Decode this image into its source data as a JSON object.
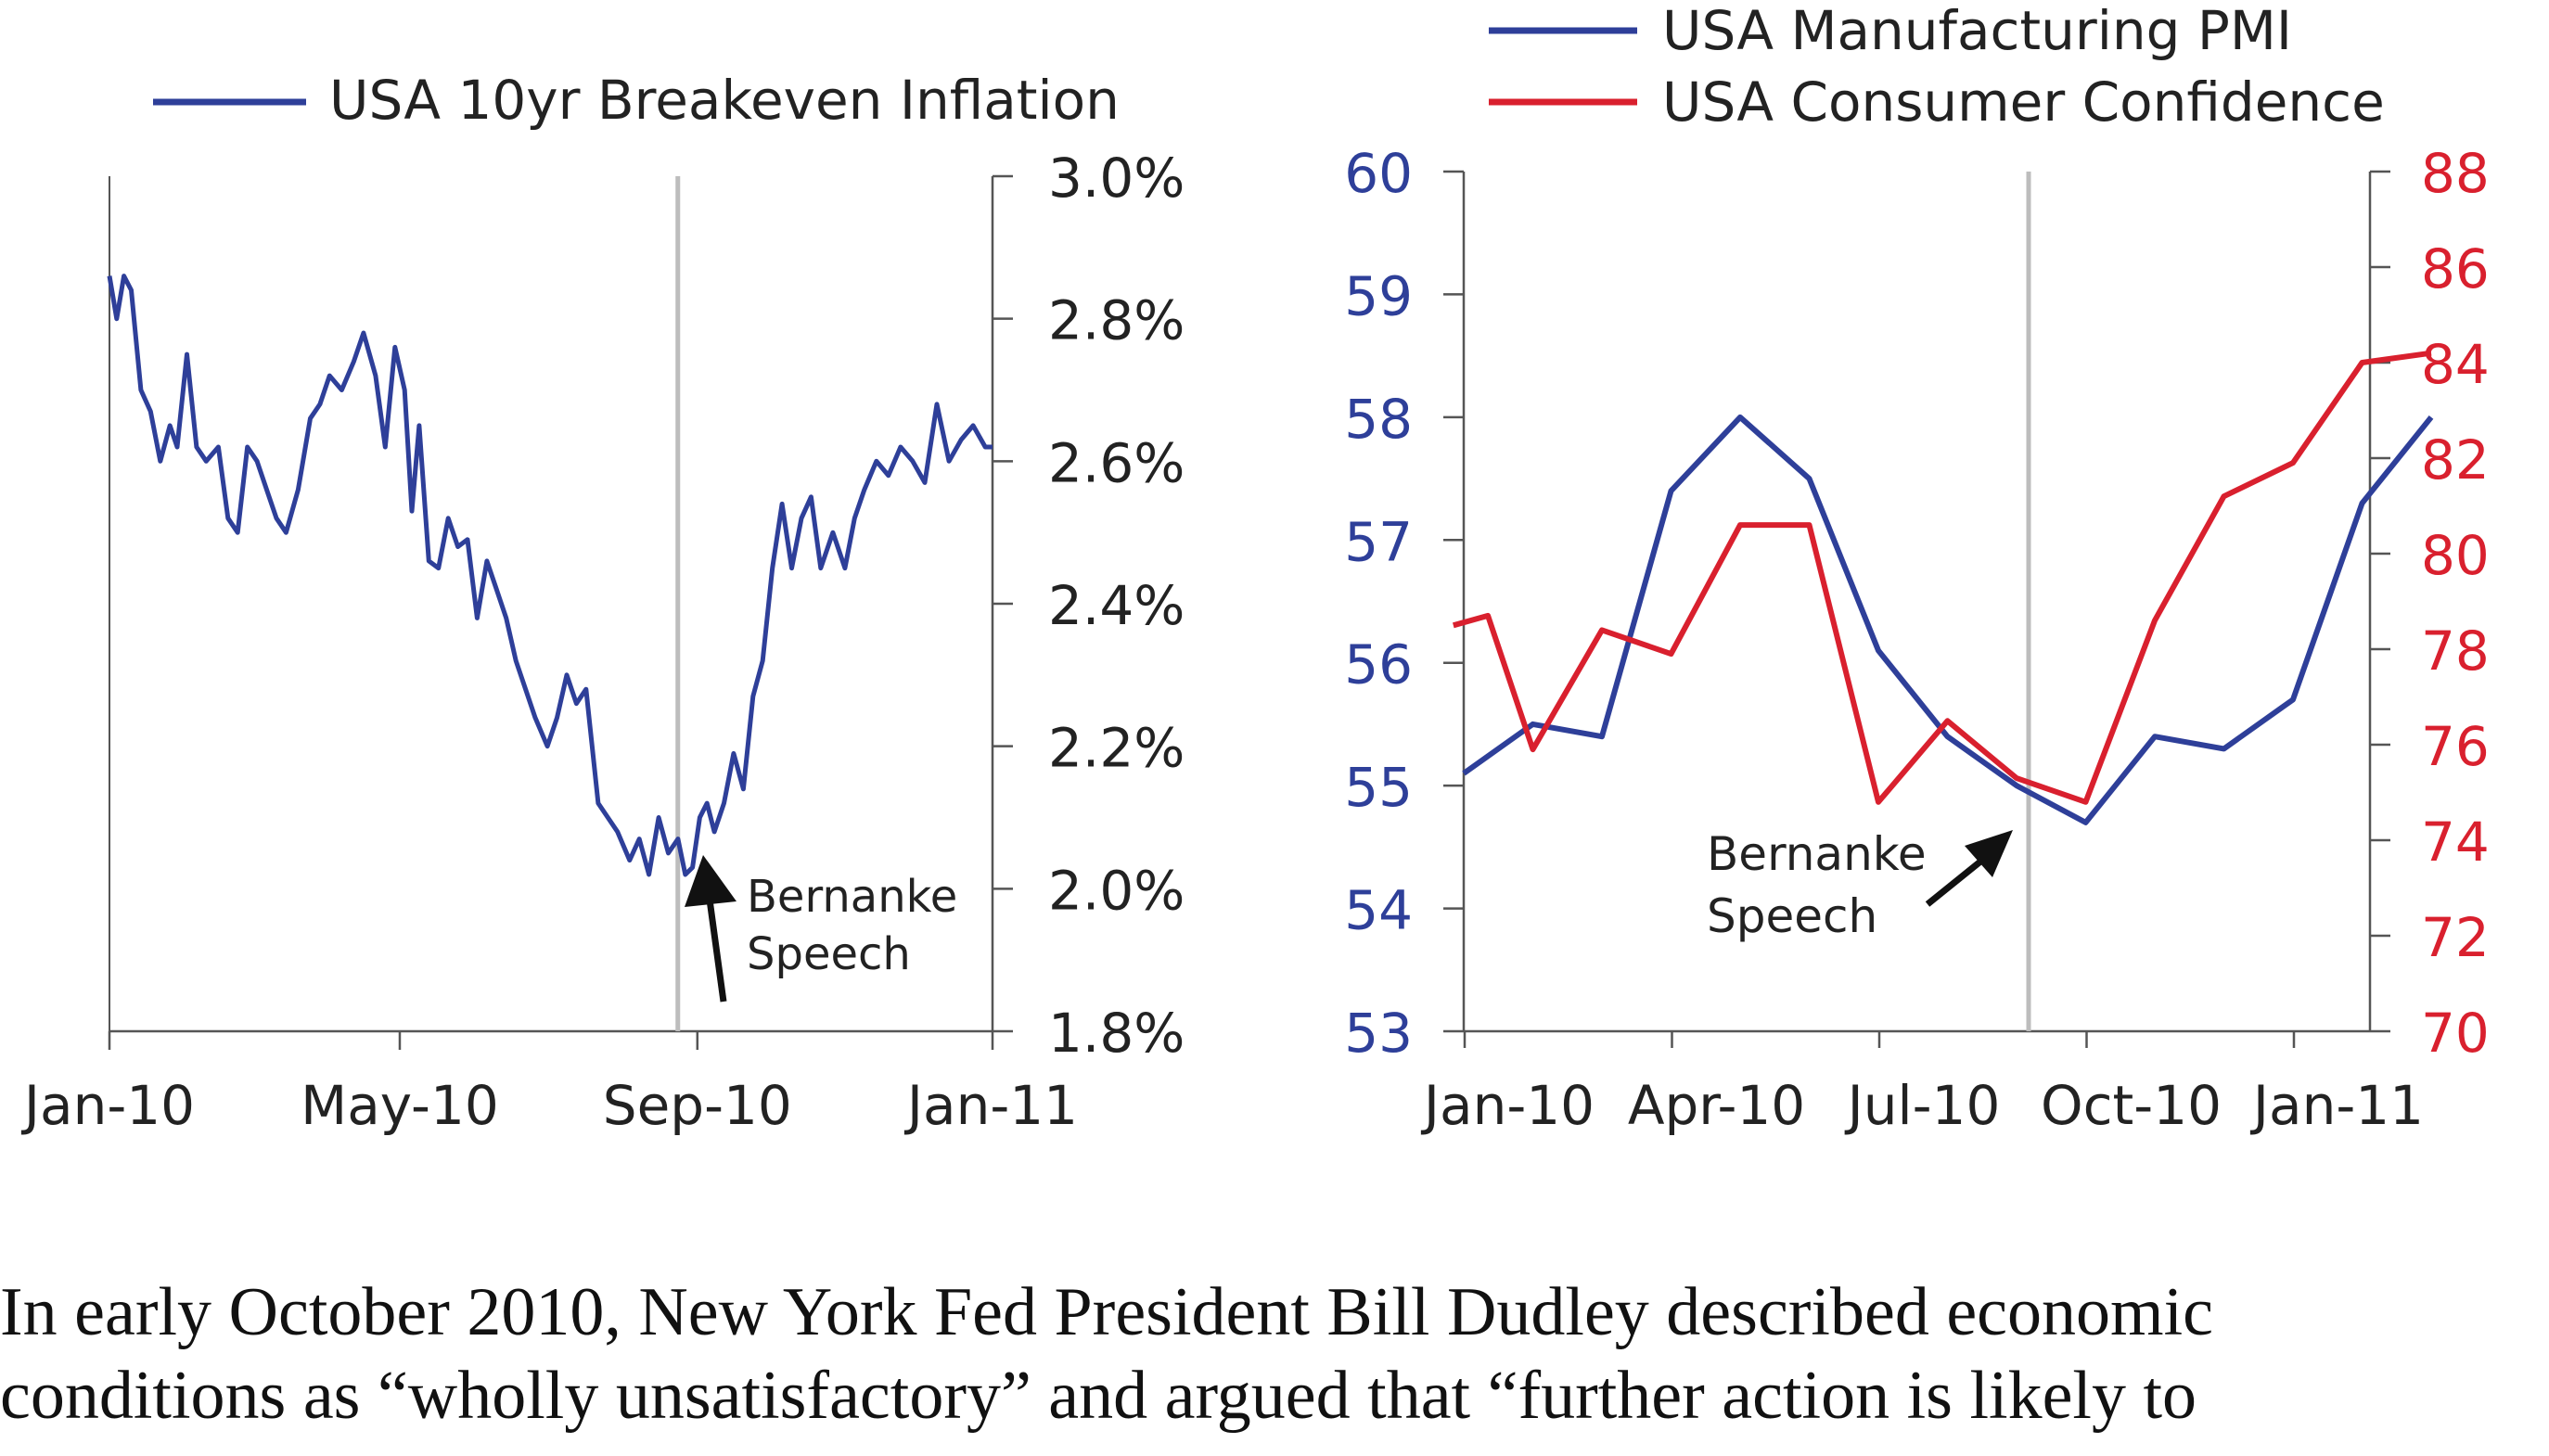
{
  "colors": {
    "blue": "#2E3F99",
    "red": "#D9202E",
    "axis": "#555555",
    "text": "#222222",
    "marker": "#BDBDBD",
    "arrow": "#111111"
  },
  "chart_data": [
    {
      "type": "line",
      "legend": [
        "USA 10yr Breakeven Inflation"
      ],
      "legend_placement": "top",
      "x_ticks": [
        "Jan-10",
        "May-10",
        "Sep-10",
        "Jan-11"
      ],
      "y_ticks": [
        "1.8%",
        "2.0%",
        "2.2%",
        "2.4%",
        "2.6%",
        "2.8%",
        "3.0%"
      ],
      "ylim": [
        1.8,
        3.0
      ],
      "y_axis_side": "right",
      "grid": false,
      "series": [
        {
          "name": "USA 10yr Breakeven Inflation",
          "color": "#2E3F99",
          "x": [
            "2010-01-01",
            "2010-01-04",
            "2010-01-07",
            "2010-01-10",
            "2010-01-14",
            "2010-01-18",
            "2010-01-22",
            "2010-01-26",
            "2010-01-29",
            "2010-02-02",
            "2010-02-06",
            "2010-02-10",
            "2010-02-15",
            "2010-02-19",
            "2010-02-23",
            "2010-02-27",
            "2010-03-03",
            "2010-03-07",
            "2010-03-11",
            "2010-03-15",
            "2010-03-20",
            "2010-03-25",
            "2010-03-29",
            "2010-04-02",
            "2010-04-07",
            "2010-04-12",
            "2010-04-16",
            "2010-04-21",
            "2010-04-25",
            "2010-04-29",
            "2010-05-03",
            "2010-05-06",
            "2010-05-09",
            "2010-05-13",
            "2010-05-17",
            "2010-05-21",
            "2010-05-25",
            "2010-05-29",
            "2010-06-02",
            "2010-06-06",
            "2010-06-10",
            "2010-06-14",
            "2010-06-18",
            "2010-06-22",
            "2010-06-26",
            "2010-07-01",
            "2010-07-05",
            "2010-07-09",
            "2010-07-13",
            "2010-07-17",
            "2010-07-22",
            "2010-07-26",
            "2010-07-30",
            "2010-08-04",
            "2010-08-08",
            "2010-08-12",
            "2010-08-16",
            "2010-08-20",
            "2010-08-24",
            "2010-08-27",
            "2010-08-30",
            "2010-09-02",
            "2010-09-05",
            "2010-09-08",
            "2010-09-12",
            "2010-09-16",
            "2010-09-20",
            "2010-09-24",
            "2010-09-28",
            "2010-10-02",
            "2010-10-06",
            "2010-10-10",
            "2010-10-14",
            "2010-10-18",
            "2010-10-22",
            "2010-10-27",
            "2010-11-01",
            "2010-11-05",
            "2010-11-09",
            "2010-11-14",
            "2010-11-19",
            "2010-11-24",
            "2010-11-29",
            "2010-12-04",
            "2010-12-09",
            "2010-12-14",
            "2010-12-19",
            "2010-12-24",
            "2010-12-29",
            "2011-01-01"
          ],
          "values": [
            2.86,
            2.8,
            2.86,
            2.84,
            2.7,
            2.67,
            2.6,
            2.65,
            2.62,
            2.75,
            2.62,
            2.6,
            2.62,
            2.52,
            2.5,
            2.62,
            2.6,
            2.56,
            2.52,
            2.5,
            2.56,
            2.66,
            2.68,
            2.72,
            2.7,
            2.74,
            2.78,
            2.72,
            2.62,
            2.76,
            2.7,
            2.53,
            2.65,
            2.46,
            2.45,
            2.52,
            2.48,
            2.49,
            2.38,
            2.46,
            2.42,
            2.38,
            2.32,
            2.28,
            2.24,
            2.2,
            2.24,
            2.3,
            2.26,
            2.28,
            2.12,
            2.1,
            2.08,
            2.04,
            2.07,
            2.02,
            2.1,
            2.05,
            2.07,
            2.02,
            2.03,
            2.1,
            2.12,
            2.08,
            2.12,
            2.19,
            2.14,
            2.27,
            2.32,
            2.45,
            2.54,
            2.45,
            2.52,
            2.55,
            2.45,
            2.5,
            2.45,
            2.52,
            2.56,
            2.6,
            2.58,
            2.62,
            2.6,
            2.57,
            2.68,
            2.6,
            2.63,
            2.65,
            2.62,
            2.62
          ]
        }
      ],
      "annotations": [
        {
          "text": [
            "Bernanke",
            "Speech"
          ],
          "x": "2010-08-27",
          "vline": true
        }
      ]
    },
    {
      "type": "line",
      "legend": [
        "USA Manufacturing PMI",
        "USA Consumer Confidence"
      ],
      "legend_placement": "top",
      "x_ticks": [
        "Jan-10",
        "Apr-10",
        "Jul-10",
        "Oct-10",
        "Jan-11"
      ],
      "y_left": {
        "ticks": [
          "53",
          "54",
          "55",
          "56",
          "57",
          "58",
          "59",
          "60"
        ],
        "range": [
          53,
          60
        ]
      },
      "y_right": {
        "ticks": [
          "70",
          "72",
          "74",
          "76",
          "78",
          "80",
          "82",
          "84",
          "86",
          "88"
        ],
        "range": [
          70,
          88
        ]
      },
      "grid": false,
      "series": [
        {
          "name": "USA Manufacturing PMI",
          "axis": "left",
          "color": "#2E3F99",
          "x": [
            "2010-01",
            "2010-02",
            "2010-03",
            "2010-04",
            "2010-05",
            "2010-06",
            "2010-07",
            "2010-08",
            "2010-09",
            "2010-10",
            "2010-11",
            "2010-12",
            "2011-01",
            "2011-02",
            "2011-03"
          ],
          "values": [
            55.1,
            55.5,
            55.4,
            57.4,
            58.0,
            57.5,
            56.1,
            55.4,
            55.0,
            54.7,
            55.4,
            55.3,
            55.7,
            57.3,
            58.0
          ]
        },
        {
          "name": "USA Consumer Confidence",
          "axis": "right",
          "color": "#D9202E",
          "x": [
            "2010-01",
            "2010-01",
            "2010-02",
            "2010-03",
            "2010-04",
            "2010-05",
            "2010-06",
            "2010-07",
            "2010-08",
            "2010-09",
            "2010-10",
            "2010-11",
            "2010-12",
            "2011-01",
            "2011-02",
            "2011-03"
          ],
          "values": [
            78.5,
            78.7,
            75.9,
            78.4,
            77.9,
            80.6,
            80.6,
            74.8,
            76.5,
            75.3,
            74.8,
            78.6,
            81.2,
            81.9,
            84.0,
            84.2
          ]
        }
      ],
      "annotations": [
        {
          "text": [
            "Bernanke",
            "Speech"
          ],
          "x": "2010-09",
          "vline": true
        }
      ]
    }
  ],
  "caption": [
    "In early October 2010, New York Fed President Bill Dudley described economic",
    "conditions as “wholly unsatisfactory” and argued that “further action is likely to"
  ]
}
